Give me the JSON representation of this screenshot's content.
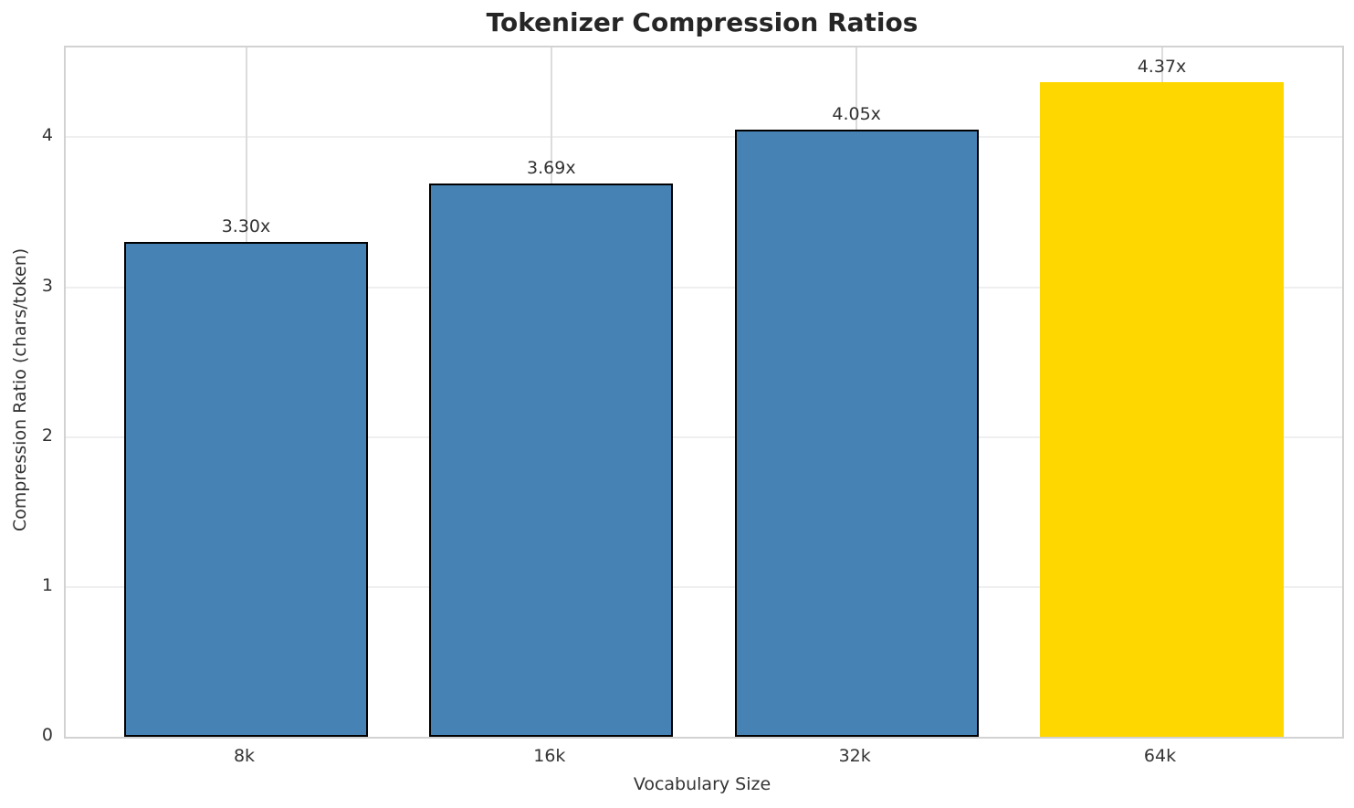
{
  "title": "Tokenizer Compression Ratios",
  "chart_data": {
    "type": "bar",
    "title": "Tokenizer Compression Ratios",
    "xlabel": "Vocabulary Size",
    "ylabel": "Compression Ratio (chars/token)",
    "categories": [
      "8k",
      "16k",
      "32k",
      "64k"
    ],
    "values": [
      3.3,
      3.69,
      4.05,
      4.37
    ],
    "bar_labels": [
      "3.30x",
      "3.69x",
      "4.05x",
      "4.37x"
    ],
    "ylim": [
      0,
      4.6
    ],
    "yticks": [
      0,
      1,
      2,
      3,
      4
    ],
    "grid": true,
    "legend": "none",
    "colors": {
      "base_bar": "#4682B4",
      "highlight_bar": "#FFD700",
      "bar_edge": "#000000",
      "h_grid": "#efefef",
      "v_grid": "#dcdcdc",
      "spine": "#d2d2d2",
      "text": "#333333",
      "title_text": "#262626"
    },
    "bar_styles": [
      {
        "fill": "#4682B4",
        "edge": "#000000"
      },
      {
        "fill": "#4682B4",
        "edge": "#000000"
      },
      {
        "fill": "#4682B4",
        "edge": "#000000"
      },
      {
        "fill": "#FFD700",
        "edge": "none"
      }
    ]
  }
}
